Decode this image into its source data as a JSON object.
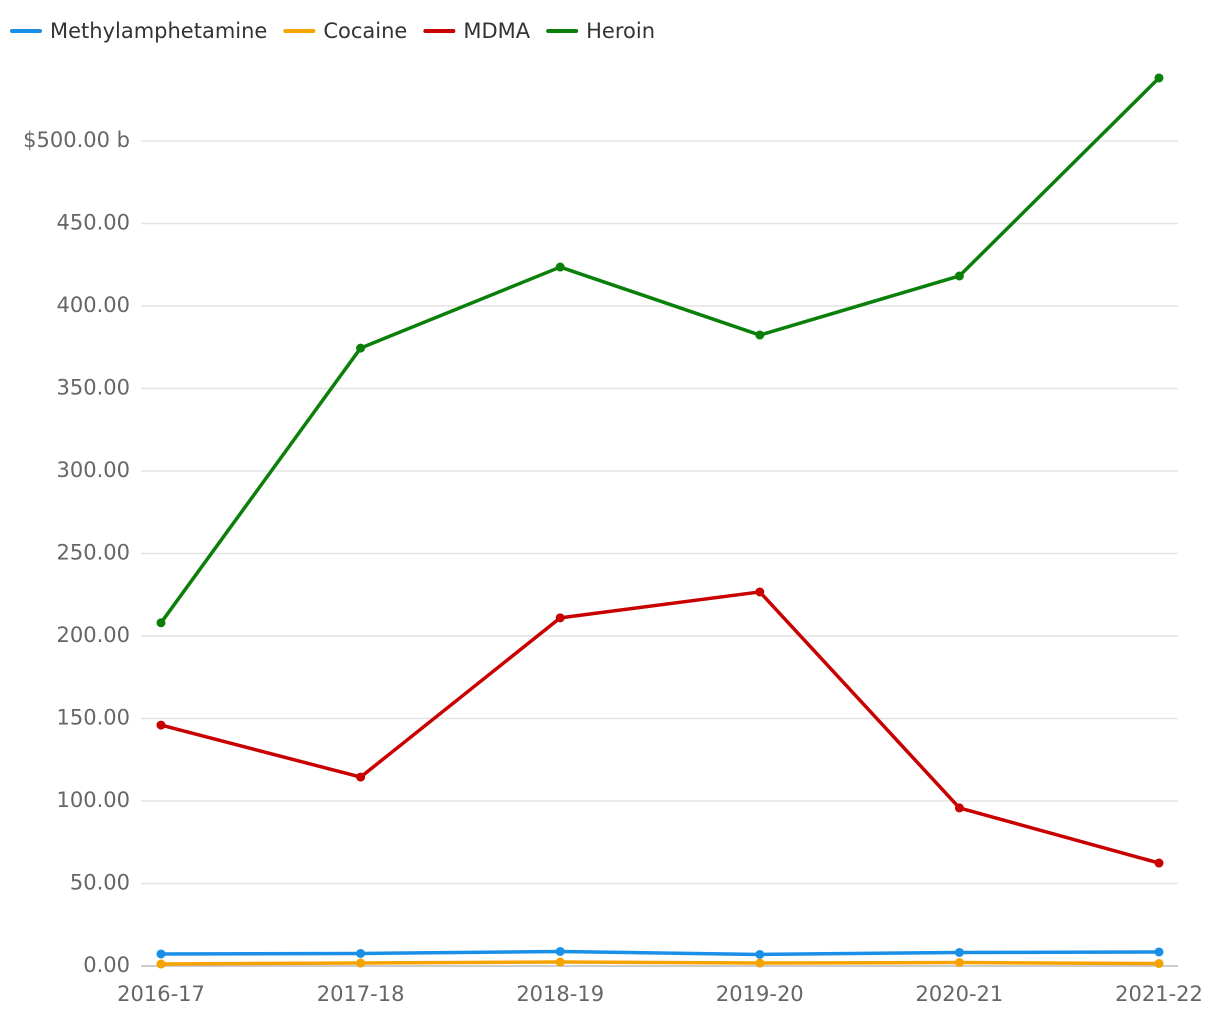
{
  "chart_data": {
    "type": "line",
    "categories": [
      "2016-17",
      "2017-18",
      "2018-19",
      "2019-20",
      "2020-21",
      "2021-22"
    ],
    "series": [
      {
        "name": "Methylamphetamine",
        "color": "#1a8fe8",
        "values": [
          7.3,
          7.6,
          8.8,
          7.0,
          8.2,
          8.5
        ]
      },
      {
        "name": "Cocaine",
        "color": "#f5a300",
        "values": [
          1.2,
          1.8,
          2.4,
          1.8,
          2.1,
          1.5
        ]
      },
      {
        "name": "MDMA",
        "color": "#c80000",
        "values": [
          146,
          114.5,
          211,
          226.7,
          95.8,
          62.4
        ]
      },
      {
        "name": "Heroin",
        "color": "#0a7f0a",
        "values": [
          208,
          374.5,
          423.6,
          382.4,
          418.2,
          538.2
        ]
      }
    ],
    "ylim": [
      0,
      550
    ],
    "yticks": [
      {
        "value": 0,
        "label": "0.00"
      },
      {
        "value": 50,
        "label": "50.00"
      },
      {
        "value": 100,
        "label": "100.00"
      },
      {
        "value": 150,
        "label": "150.00"
      },
      {
        "value": 200,
        "label": "200.00"
      },
      {
        "value": 250,
        "label": "250.00"
      },
      {
        "value": 300,
        "label": "300.00"
      },
      {
        "value": 350,
        "label": "350.00"
      },
      {
        "value": 400,
        "label": "400.00"
      },
      {
        "value": 450,
        "label": "450.00"
      },
      {
        "value": 500,
        "label": "$500.00 b"
      }
    ],
    "grid": true,
    "legend": "top-left"
  }
}
